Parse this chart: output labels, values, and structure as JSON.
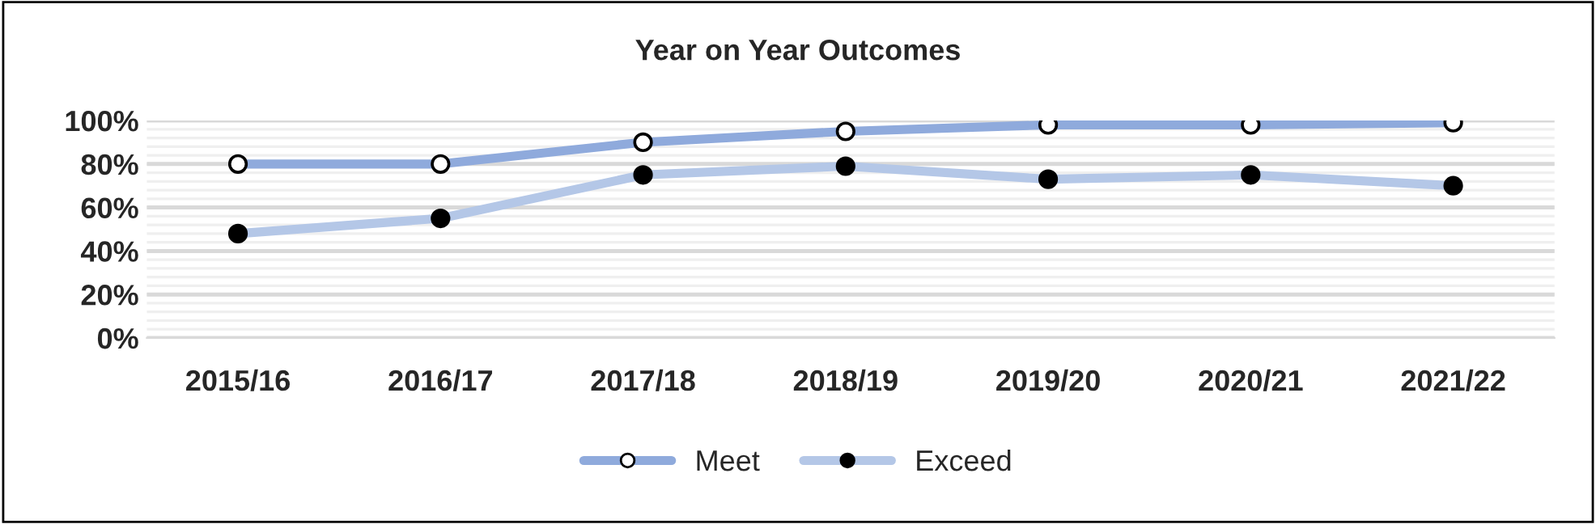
{
  "chart_data": {
    "type": "line",
    "title": "Year on Year Outcomes",
    "categories": [
      "2015/16",
      "2016/17",
      "2017/18",
      "2018/19",
      "2019/20",
      "2020/21",
      "2021/22"
    ],
    "series": [
      {
        "name": "Meet",
        "color": "#8faadc",
        "values": [
          80,
          80,
          90,
          95,
          98,
          98,
          99
        ]
      },
      {
        "name": "Exceed",
        "color": "#b4c7e7",
        "values": [
          48,
          55,
          75,
          79,
          73,
          75,
          70
        ]
      }
    ],
    "ylim": [
      0,
      100
    ],
    "yticks": [
      {
        "value": 0,
        "label": "0%"
      },
      {
        "value": 20,
        "label": "20%"
      },
      {
        "value": 40,
        "label": "40%"
      },
      {
        "value": 60,
        "label": "60%"
      },
      {
        "value": 80,
        "label": "80%"
      },
      {
        "value": 100,
        "label": "100%"
      }
    ],
    "grid": "y",
    "legend": "bottom",
    "marker": "circle",
    "line_style": "solid"
  }
}
